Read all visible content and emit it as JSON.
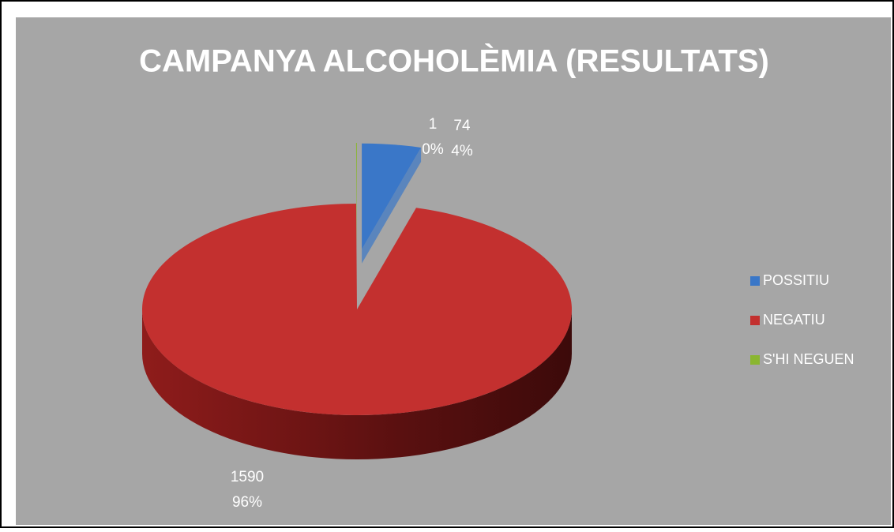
{
  "chart_data": {
    "type": "pie3d",
    "title": "CAMPANYA ALCOHOLÈMIA (RESULTATS)",
    "categories": [
      "POSSITIU",
      "NEGATIU",
      "S'HI NEGUEN"
    ],
    "values": [
      74,
      1590,
      1
    ],
    "percent_labels": [
      "4%",
      "96%",
      "0%"
    ],
    "colors": [
      "#3a77c8",
      "#c3302f",
      "#8ab630"
    ],
    "legend": "right"
  }
}
